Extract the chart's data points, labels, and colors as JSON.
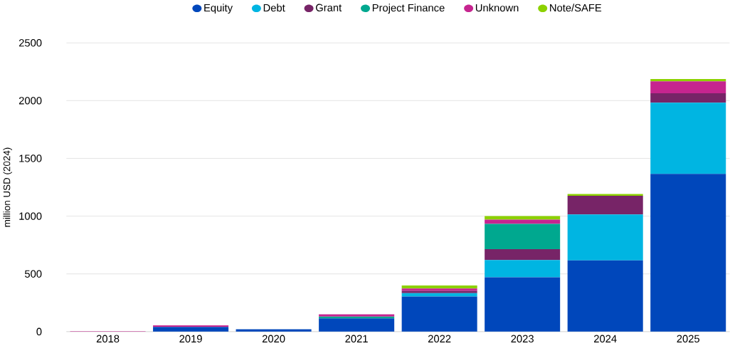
{
  "chart_data": {
    "type": "bar",
    "stacked": true,
    "ylabel": "million USD (2024)",
    "categories": [
      "2018",
      "2019",
      "2020",
      "2021",
      "2022",
      "2023",
      "2024",
      "2025"
    ],
    "series": [
      {
        "name": "Equity",
        "color": "#0047bb",
        "values": [
          0,
          40,
          20,
          115,
          304,
          470,
          617,
          1366
        ]
      },
      {
        "name": "Debt",
        "color": "#00b5e2",
        "values": [
          0,
          0,
          0,
          0,
          30,
          150,
          397,
          616
        ]
      },
      {
        "name": "Grant",
        "color": "#772467",
        "values": [
          0,
          0,
          0,
          0,
          20,
          94,
          162,
          82
        ]
      },
      {
        "name": "Project Finance",
        "color": "#00a88f",
        "values": [
          0,
          0,
          0,
          15,
          0,
          219,
          0,
          0
        ]
      },
      {
        "name": "Unknown",
        "color": "#c6258f",
        "values": [
          3,
          15,
          0,
          20,
          20,
          37,
          0,
          103
        ]
      },
      {
        "name": "Note/SAFE",
        "color": "#8cd100",
        "values": [
          0,
          0,
          0,
          0,
          25,
          30,
          15,
          20
        ]
      }
    ],
    "ylim": [
      0,
      2500
    ],
    "yticks": [
      0,
      500,
      1000,
      1500,
      2000,
      2500
    ],
    "grid": "y",
    "legend": "top"
  }
}
